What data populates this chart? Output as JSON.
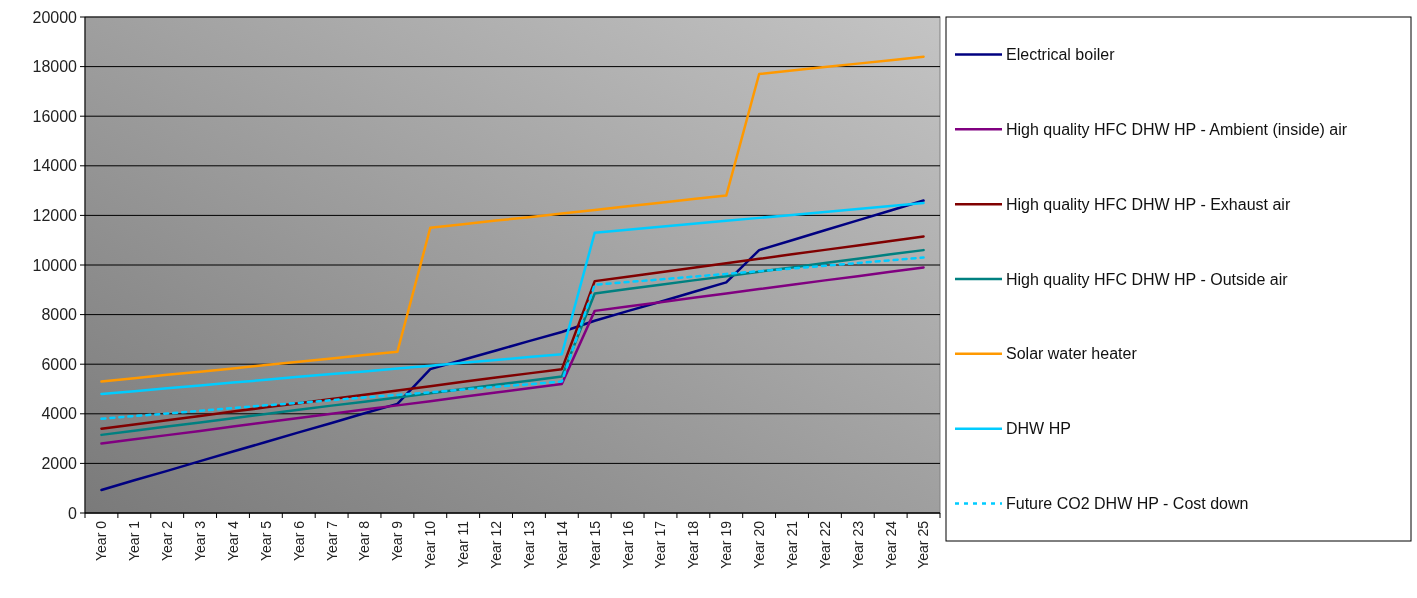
{
  "chart_data": {
    "type": "line",
    "categories": [
      "Year 0",
      "Year 1",
      "Year 2",
      "Year 3",
      "Year 4",
      "Year 5",
      "Year 6",
      "Year 7",
      "Year 8",
      "Year 9",
      "Year 10",
      "Year 11",
      "Year 12",
      "Year 13",
      "Year 14",
      "Year 15",
      "Year 16",
      "Year 17",
      "Year 18",
      "Year 19",
      "Year 20",
      "Year 21",
      "Year 22",
      "Year 23",
      "Year 24",
      "Year 25"
    ],
    "series": [
      {
        "name": "Electrical boiler",
        "color": "#000080",
        "values": [
          930,
          1320,
          1700,
          2090,
          2480,
          2860,
          3250,
          3630,
          4020,
          4400,
          5800,
          6180,
          6550,
          6930,
          7300,
          7750,
          8140,
          8520,
          8910,
          9300,
          10600,
          11000,
          11400,
          11800,
          12200,
          12600
        ]
      },
      {
        "name": "High quality HFC DHW HP - Ambient (inside) air",
        "color": "#800080",
        "values": [
          2800,
          2970,
          3140,
          3310,
          3490,
          3660,
          3830,
          4000,
          4170,
          4340,
          4510,
          4690,
          4860,
          5030,
          5200,
          8150,
          8330,
          8500,
          8680,
          8850,
          9030,
          9200,
          9380,
          9550,
          9730,
          9900
        ]
      },
      {
        "name": "High quality HFC DHW HP - Exhaust air",
        "color": "#800000",
        "values": [
          3400,
          3570,
          3740,
          3910,
          4090,
          4260,
          4430,
          4600,
          4770,
          4940,
          5110,
          5290,
          5460,
          5630,
          5800,
          9350,
          9530,
          9710,
          9890,
          10070,
          10250,
          10430,
          10610,
          10790,
          10970,
          11150
        ]
      },
      {
        "name": "High quality HFC DHW HP - Outside air",
        "color": "#008080",
        "values": [
          3150,
          3320,
          3490,
          3650,
          3820,
          3990,
          4160,
          4330,
          4490,
          4660,
          4830,
          5000,
          5170,
          5330,
          5500,
          8850,
          9030,
          9200,
          9380,
          9550,
          9730,
          9900,
          10080,
          10250,
          10430,
          10600
        ]
      },
      {
        "name": "Solar water heater",
        "color": "#ff9900",
        "values": [
          5300,
          5430,
          5570,
          5700,
          5830,
          5970,
          6100,
          6230,
          6370,
          6500,
          11500,
          11640,
          11790,
          11930,
          12080,
          12220,
          12370,
          12510,
          12660,
          12800,
          17700,
          17840,
          17980,
          18120,
          18260,
          18400
        ]
      },
      {
        "name": "DHW HP",
        "color": "#00ccff",
        "values": [
          4800,
          4910,
          5030,
          5140,
          5260,
          5370,
          5490,
          5600,
          5710,
          5830,
          5940,
          6060,
          6170,
          6290,
          6400,
          11300,
          11420,
          11540,
          11660,
          11780,
          11900,
          12020,
          12140,
          12260,
          12380,
          12500
        ]
      },
      {
        "name": "Future CO2 DHW HP - Cost down",
        "color": "#00ccff",
        "line_style": "dashed",
        "values": [
          3800,
          3910,
          4010,
          4120,
          4230,
          4340,
          4440,
          4550,
          4660,
          4760,
          4870,
          4980,
          5090,
          5190,
          5300,
          9200,
          9310,
          9420,
          9530,
          9640,
          9750,
          9860,
          9970,
          10080,
          10190,
          10300
        ]
      }
    ],
    "ylim": [
      0,
      20000
    ],
    "yticks": [
      0,
      2000,
      4000,
      6000,
      8000,
      10000,
      12000,
      14000,
      16000,
      18000,
      20000
    ],
    "grid": "y",
    "legend": "right",
    "line_style": "solid"
  }
}
